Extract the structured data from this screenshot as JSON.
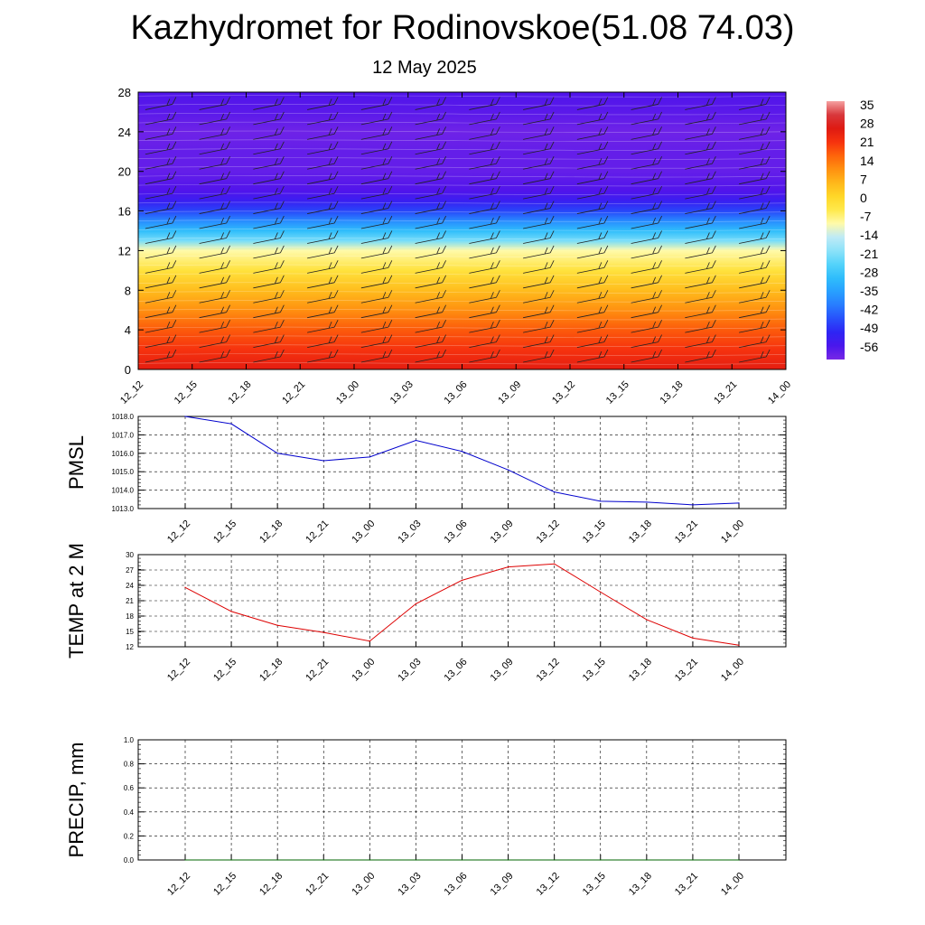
{
  "title": "Kazhydromet for Rodinovskoe(51.08 74.03)",
  "subtitle": "12 May 2025",
  "time_labels": [
    "12_12",
    "12_15",
    "12_18",
    "12_21",
    "13_00",
    "13_03",
    "13_06",
    "13_09",
    "13_12",
    "13_15",
    "13_18",
    "13_21",
    "14_00"
  ],
  "chart_data": [
    {
      "type": "heatmap",
      "x": [
        "12_12",
        "12_15",
        "12_18",
        "12_21",
        "13_00",
        "13_03",
        "13_06",
        "13_09",
        "13_12",
        "13_15",
        "13_18",
        "13_21",
        "14_00"
      ],
      "ylim": [
        0,
        28
      ],
      "yticks": [
        0,
        4,
        8,
        12,
        16,
        20,
        24,
        28
      ],
      "colorbar_labels": [
        "35",
        "28",
        "21",
        "14",
        "7",
        "0",
        "-7",
        "-14",
        "-21",
        "-28",
        "-35",
        "-42",
        "-49",
        "-56"
      ],
      "temperature_profile": [
        {
          "height": 0,
          "temp": 24
        },
        {
          "height": 2,
          "temp": 20
        },
        {
          "height": 4,
          "temp": 16
        },
        {
          "height": 6,
          "temp": 10
        },
        {
          "height": 8,
          "temp": 4
        },
        {
          "height": 10,
          "temp": -3
        },
        {
          "height": 12,
          "temp": -10
        },
        {
          "height": 13,
          "temp": -22
        },
        {
          "height": 14,
          "temp": -30
        },
        {
          "height": 15,
          "temp": -38
        },
        {
          "height": 16,
          "temp": -46
        },
        {
          "height": 17,
          "temp": -52
        },
        {
          "height": 18,
          "temp": -56
        },
        {
          "height": 20,
          "temp": -58
        },
        {
          "height": 22,
          "temp": -58
        },
        {
          "height": 24,
          "temp": -59
        },
        {
          "height": 26,
          "temp": -57
        },
        {
          "height": 28,
          "temp": -56
        }
      ]
    },
    {
      "type": "line",
      "ylabel": "PMSL",
      "x": [
        "12_12",
        "12_15",
        "12_18",
        "12_21",
        "13_00",
        "13_03",
        "13_06",
        "13_09",
        "13_12",
        "13_15",
        "13_18",
        "13_21",
        "14_00"
      ],
      "values": [
        1018.0,
        1017.6,
        1016.0,
        1015.6,
        1015.8,
        1016.7,
        1016.1,
        1015.1,
        1013.9,
        1013.4,
        1013.35,
        1013.2,
        1013.3
      ],
      "ylim": [
        1013.0,
        1018.0
      ],
      "yticks": [
        "1013.0",
        "1014.0",
        "1015.0",
        "1016.0",
        "1017.0",
        "1018.0"
      ],
      "color": "#0000cc"
    },
    {
      "type": "line",
      "ylabel": "TEMP at 2 M",
      "x": [
        "12_12",
        "12_15",
        "12_18",
        "12_21",
        "13_00",
        "13_03",
        "13_06",
        "13_09",
        "13_12",
        "13_15",
        "13_18",
        "13_21",
        "14_00"
      ],
      "values": [
        23.6,
        18.9,
        16.2,
        14.8,
        13.1,
        20.4,
        25.0,
        27.6,
        28.2,
        22.7,
        17.3,
        13.7,
        12.3
      ],
      "ylim": [
        12,
        30
      ],
      "yticks": [
        "12",
        "15",
        "18",
        "21",
        "24",
        "27",
        "30"
      ],
      "color": "#dd0000"
    },
    {
      "type": "line",
      "ylabel": "PRECIP, mm",
      "x": [
        "12_12",
        "12_15",
        "12_18",
        "12_21",
        "13_00",
        "13_03",
        "13_06",
        "13_09",
        "13_12",
        "13_15",
        "13_18",
        "13_21",
        "14_00"
      ],
      "values": [
        0,
        0,
        0,
        0,
        0,
        0,
        0,
        0,
        0,
        0,
        0,
        0,
        0
      ],
      "ylim": [
        0,
        1.0
      ],
      "yticks": [
        "0.0",
        "0.2",
        "0.4",
        "0.6",
        "0.8",
        "1.0"
      ],
      "color": "#006600"
    }
  ]
}
